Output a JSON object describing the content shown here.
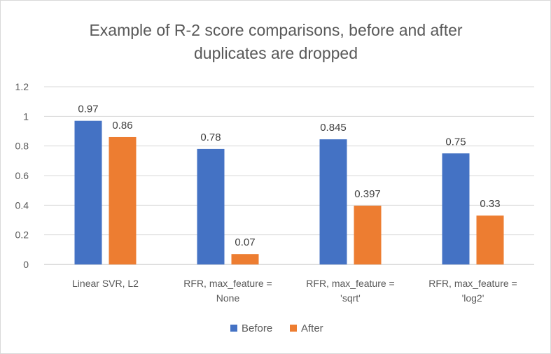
{
  "chart_data": {
    "type": "bar",
    "title": "Example of R-2 score comparisons, before and after duplicates are dropped",
    "title_lines": [
      "Example of R-2 score comparisons, before and after",
      "duplicates are dropped"
    ],
    "categories": [
      [
        "Linear SVR, L2"
      ],
      [
        "RFR, max_feature =",
        "None"
      ],
      [
        "RFR, max_feature =",
        "'sqrt'"
      ],
      [
        "RFR, max_feature =",
        "'log2'"
      ]
    ],
    "series": [
      {
        "name": "Before",
        "color": "#4472C4",
        "values": [
          0.97,
          0.78,
          0.845,
          0.75
        ]
      },
      {
        "name": "After",
        "color": "#ED7D31",
        "values": [
          0.86,
          0.07,
          0.397,
          0.33
        ]
      }
    ],
    "data_labels": [
      [
        "0.97",
        "0.78",
        "0.845",
        "0.75"
      ],
      [
        "0.86",
        "0.07",
        "0.397",
        "0.33"
      ]
    ],
    "yticks": [
      "0",
      "0.2",
      "0.4",
      "0.6",
      "0.8",
      "1",
      "1.2"
    ],
    "ylim": [
      0,
      1.2
    ],
    "grid": true,
    "legend": "bottom"
  }
}
